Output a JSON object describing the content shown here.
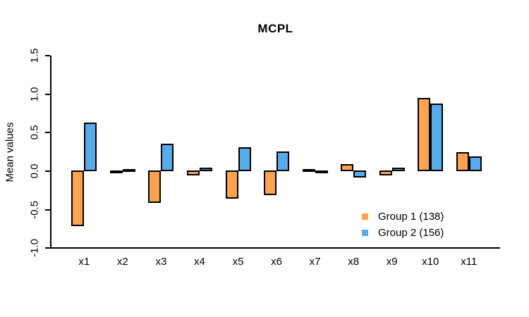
{
  "chart_data": {
    "type": "bar",
    "title": "MCPL",
    "xlabel": "",
    "ylabel": "Mean values",
    "categories": [
      "x1",
      "x2",
      "x3",
      "x4",
      "x5",
      "x6",
      "x7",
      "x8",
      "x9",
      "x10",
      "x11"
    ],
    "series": [
      {
        "name": "Group 1 (138)",
        "color": "#FCA44D",
        "values": [
          -0.72,
          -0.02,
          -0.42,
          -0.06,
          -0.37,
          -0.32,
          0.03,
          0.09,
          -0.06,
          0.95,
          0.25
        ]
      },
      {
        "name": "Group 2 (156)",
        "color": "#58ABEB",
        "values": [
          0.63,
          0.01,
          0.36,
          0.05,
          0.31,
          0.26,
          -0.02,
          -0.09,
          0.05,
          0.88,
          0.19
        ]
      }
    ],
    "ylim": [
      -1.0,
      1.5
    ],
    "yticks": [
      -1.0,
      -0.5,
      0.0,
      0.5,
      1.0,
      1.5
    ],
    "ytick_labels": [
      "-1.0",
      "-0.5",
      "0.0",
      "0.5",
      "1.0",
      "1.5"
    ],
    "grid": false,
    "legend_position": "inside-right-lower",
    "bar_border_color": "#000000",
    "background_color": "#ffffff"
  }
}
